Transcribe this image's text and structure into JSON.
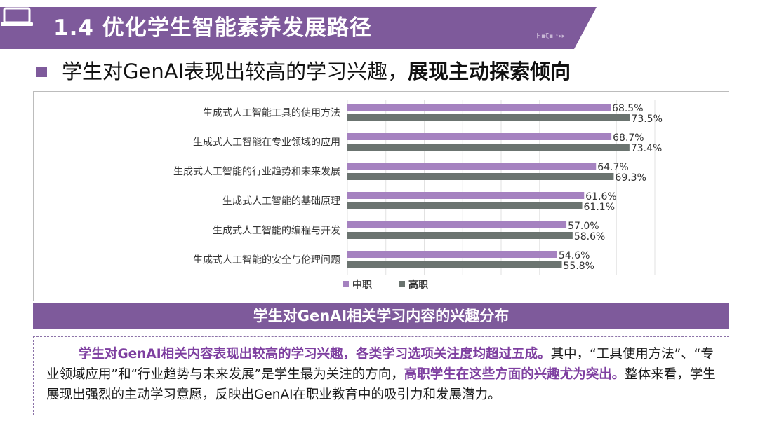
{
  "header": {
    "title": "1.4 优化学生智能素养发展路径",
    "deco_text": "ト▪ζ▪Ⅰ◦▸▸"
  },
  "subtitle": {
    "normal": "学生对GenAI表现出较高的学习兴趣，",
    "bold": "展现主动探索倾向"
  },
  "chart_data": {
    "type": "bar",
    "orientation": "horizontal",
    "categories": [
      "生成式人工智能工具的使用方法",
      "生成式人工智能在专业领域的应用",
      "生成式人工智能的行业趋势和未来发展",
      "生成式人工智能的基础原理",
      "生成式人工智能的编程与开发",
      "生成式人工智能的安全与伦理问题"
    ],
    "series": [
      {
        "name": "中职",
        "values": [
          68.5,
          68.7,
          64.7,
          61.6,
          57.0,
          54.6
        ],
        "labels": [
          "68.5%",
          "68.7%",
          "64.7%",
          "61.6%",
          "57.0%",
          "54.6%"
        ],
        "color": "#a582c0"
      },
      {
        "name": "高职",
        "values": [
          73.5,
          73.4,
          69.3,
          61.1,
          58.6,
          55.8
        ],
        "labels": [
          "73.5%",
          "73.4%",
          "69.3%",
          "61.1%",
          "58.6%",
          "55.8%"
        ],
        "color": "#6b7470"
      }
    ],
    "xlim": [
      0,
      80
    ],
    "grid": true,
    "legend": "bottom-center"
  },
  "caption": "学生对GenAI相关学习内容的兴趣分布",
  "description": {
    "p1": "学生对GenAI相关内容表现出较高的学习兴趣，各类学习选项关注度均超过五成。",
    "p2": "其中，“工具使用方法”、“专业领域应用”和“行业趋势与未来发展”是学生最为关注的方向，",
    "p3": "高职学生在这些方面的兴趣尤为突出。",
    "p4": "整体来看，学生展现出强烈的主动学习意愿，反映出GenAI在职业教育中的吸引力和发展潜力。"
  },
  "colors": {
    "accent": "#7e5a9b",
    "highlight": "#7e3fa0"
  }
}
